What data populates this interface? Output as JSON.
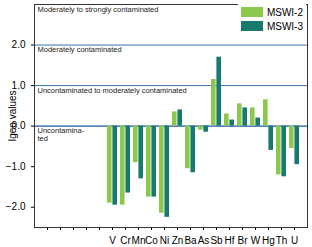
{
  "chart_data": {
    "type": "bar",
    "y_label": "Igeo values",
    "categories": [
      null,
      null,
      null,
      null,
      null,
      "V",
      "Cr",
      "Mn",
      "Co",
      "Ni",
      "Zn",
      "Ba",
      "As",
      "Sb",
      "Hf",
      "Br",
      "W",
      "Hg",
      "Th",
      "U"
    ],
    "series": [
      {
        "name": "MSWI-2",
        "color": "#8cc84b",
        "values": [
          null,
          null,
          null,
          null,
          null,
          -1.9,
          -1.95,
          -0.9,
          -1.75,
          -2.15,
          0.35,
          -1.05,
          -0.1,
          1.15,
          0.3,
          0.55,
          0.45,
          0.65,
          -1.2,
          -0.55
        ]
      },
      {
        "name": "MSWI-3",
        "color": "#177a6c",
        "values": [
          null,
          null,
          null,
          null,
          null,
          -1.95,
          -1.65,
          -1.3,
          -1.75,
          -2.25,
          0.4,
          -1.15,
          -0.15,
          1.7,
          0.15,
          0.45,
          0.2,
          -0.6,
          -1.25,
          -0.95
        ]
      }
    ],
    "ylim": [
      -2.5,
      3
    ],
    "yticks": [
      -2,
      -1,
      0,
      1,
      2
    ],
    "legend": "top-right",
    "zones": [
      {
        "label": "Moderately to strongly contaminated",
        "min": 2
      },
      {
        "label": "Moderately contaminated",
        "min": 1,
        "max": 2
      },
      {
        "label": "Uncontaminated to moderately contaminated",
        "min": 0,
        "max": 1
      },
      {
        "label": "Uncontamina-\nted",
        "max": 0
      }
    ]
  }
}
